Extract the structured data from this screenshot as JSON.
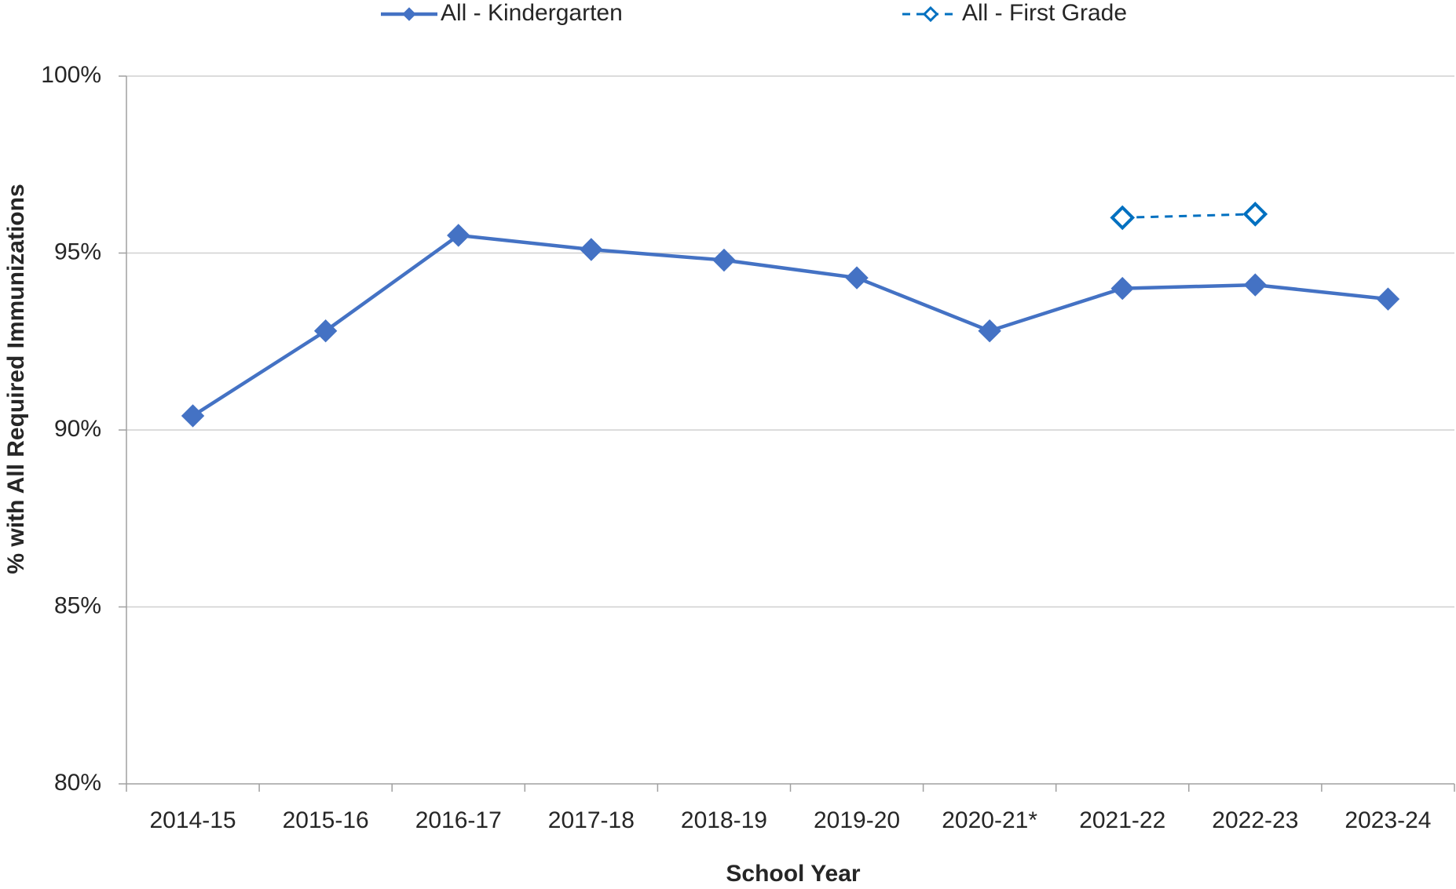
{
  "chart_data": {
    "type": "line",
    "x_label": "School Year",
    "y_label": "% with All Required  Immunizations",
    "categories": [
      "2014-15",
      "2015-16",
      "2016-17",
      "2017-18",
      "2018-19",
      "2019-20",
      "2020-21*",
      "2021-22",
      "2022-23",
      "2023-24"
    ],
    "series": [
      {
        "name": "All - Kindergarten",
        "color": "#4472c4",
        "dashed": false,
        "hollow": false,
        "values": [
          90.4,
          92.8,
          95.5,
          95.1,
          94.8,
          94.3,
          92.8,
          94.0,
          94.1,
          93.7
        ]
      },
      {
        "name": "All - First Grade",
        "color": "#0070c0",
        "dashed": true,
        "hollow": true,
        "values": [
          null,
          null,
          null,
          null,
          null,
          null,
          null,
          96.0,
          96.1,
          null
        ]
      }
    ],
    "ylim": [
      80,
      100
    ],
    "yticks": [
      {
        "value": 80,
        "label": "80%"
      },
      {
        "value": 85,
        "label": "85%"
      },
      {
        "value": 90,
        "label": "90%"
      },
      {
        "value": 95,
        "label": "95%"
      },
      {
        "value": 100,
        "label": "100%"
      }
    ],
    "grid": true,
    "legend": "top"
  }
}
